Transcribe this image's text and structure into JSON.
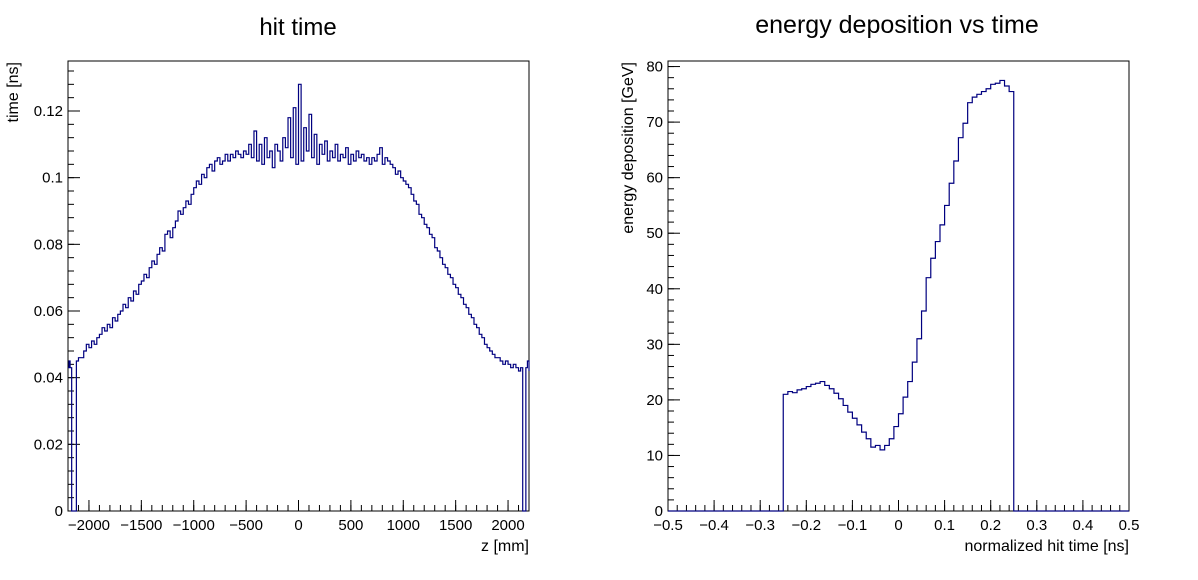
{
  "chart_data": [
    {
      "id": "left",
      "type": "histogram",
      "title": "hit time",
      "xlabel": "z [mm]",
      "ylabel": "time [ns]",
      "xlim": [
        -2200,
        2200
      ],
      "ylim": [
        0,
        0.135
      ],
      "xticks": [
        -2000,
        -1500,
        -1000,
        -500,
        0,
        500,
        1000,
        1500,
        2000
      ],
      "xtick_labels": [
        "−2000",
        "−1500",
        "−1000",
        "−500",
        "0",
        "500",
        "1000",
        "1500",
        "2000"
      ],
      "yticks": [
        0,
        0.02,
        0.04,
        0.06,
        0.08,
        0.1,
        0.12
      ],
      "ytick_labels": [
        "0",
        "0.02",
        "0.04",
        "0.06",
        "0.08",
        "0.1",
        "0.12"
      ],
      "grid": false,
      "series": [
        {
          "color": "#000080",
          "bins": [
            [
              -2200,
              0.043
            ],
            [
              -2190,
              0.045
            ],
            [
              -2180,
              0.043
            ],
            [
              -2165,
              0.0
            ],
            [
              -2150,
              0.0
            ],
            [
              -2140,
              0.0
            ],
            [
              -2120,
              0.045
            ],
            [
              -2100,
              0.046
            ],
            [
              -2075,
              0.046
            ],
            [
              -2050,
              0.048
            ],
            [
              -2025,
              0.05
            ],
            [
              -2000,
              0.049
            ],
            [
              -1975,
              0.051
            ],
            [
              -1950,
              0.05
            ],
            [
              -1925,
              0.052
            ],
            [
              -1900,
              0.053
            ],
            [
              -1875,
              0.055
            ],
            [
              -1850,
              0.054
            ],
            [
              -1825,
              0.056
            ],
            [
              -1800,
              0.055
            ],
            [
              -1775,
              0.058
            ],
            [
              -1750,
              0.057
            ],
            [
              -1725,
              0.059
            ],
            [
              -1700,
              0.06
            ],
            [
              -1675,
              0.062
            ],
            [
              -1650,
              0.061
            ],
            [
              -1625,
              0.064
            ],
            [
              -1600,
              0.063
            ],
            [
              -1575,
              0.066
            ],
            [
              -1550,
              0.065
            ],
            [
              -1525,
              0.068
            ],
            [
              -1500,
              0.069
            ],
            [
              -1475,
              0.071
            ],
            [
              -1450,
              0.07
            ],
            [
              -1425,
              0.073
            ],
            [
              -1400,
              0.075
            ],
            [
              -1375,
              0.074
            ],
            [
              -1350,
              0.077
            ],
            [
              -1325,
              0.079
            ],
            [
              -1300,
              0.078
            ],
            [
              -1275,
              0.083
            ],
            [
              -1250,
              0.084
            ],
            [
              -1225,
              0.082
            ],
            [
              -1200,
              0.085
            ],
            [
              -1175,
              0.087
            ],
            [
              -1150,
              0.09
            ],
            [
              -1125,
              0.089
            ],
            [
              -1100,
              0.091
            ],
            [
              -1075,
              0.093
            ],
            [
              -1050,
              0.092
            ],
            [
              -1025,
              0.095
            ],
            [
              -1000,
              0.097
            ],
            [
              -975,
              0.099
            ],
            [
              -950,
              0.098
            ],
            [
              -925,
              0.101
            ],
            [
              -900,
              0.1
            ],
            [
              -875,
              0.103
            ],
            [
              -850,
              0.104
            ],
            [
              -825,
              0.102
            ],
            [
              -800,
              0.105
            ],
            [
              -775,
              0.106
            ],
            [
              -750,
              0.104
            ],
            [
              -725,
              0.105
            ],
            [
              -700,
              0.107
            ],
            [
              -675,
              0.105
            ],
            [
              -650,
              0.107
            ],
            [
              -625,
              0.106
            ],
            [
              -600,
              0.108
            ],
            [
              -575,
              0.107
            ],
            [
              -550,
              0.106
            ],
            [
              -525,
              0.108
            ],
            [
              -500,
              0.107
            ],
            [
              -475,
              0.11
            ],
            [
              -450,
              0.106
            ],
            [
              -425,
              0.114
            ],
            [
              -400,
              0.105
            ],
            [
              -375,
              0.11
            ],
            [
              -350,
              0.104
            ],
            [
              -325,
              0.112
            ],
            [
              -300,
              0.106
            ],
            [
              -275,
              0.108
            ],
            [
              -250,
              0.103
            ],
            [
              -225,
              0.11
            ],
            [
              -200,
              0.108
            ],
            [
              -175,
              0.105
            ],
            [
              -150,
              0.112
            ],
            [
              -125,
              0.109
            ],
            [
              -100,
              0.118
            ],
            [
              -75,
              0.106
            ],
            [
              -50,
              0.121
            ],
            [
              -25,
              0.104
            ],
            [
              0,
              0.128
            ],
            [
              25,
              0.105
            ],
            [
              50,
              0.115
            ],
            [
              75,
              0.108
            ],
            [
              100,
              0.119
            ],
            [
              125,
              0.106
            ],
            [
              150,
              0.113
            ],
            [
              175,
              0.104
            ],
            [
              200,
              0.11
            ],
            [
              225,
              0.107
            ],
            [
              250,
              0.111
            ],
            [
              275,
              0.105
            ],
            [
              300,
              0.108
            ],
            [
              325,
              0.106
            ],
            [
              350,
              0.11
            ],
            [
              375,
              0.105
            ],
            [
              400,
              0.107
            ],
            [
              425,
              0.106
            ],
            [
              450,
              0.109
            ],
            [
              475,
              0.104
            ],
            [
              500,
              0.107
            ],
            [
              525,
              0.105
            ],
            [
              550,
              0.108
            ],
            [
              575,
              0.106
            ],
            [
              600,
              0.107
            ],
            [
              625,
              0.105
            ],
            [
              650,
              0.106
            ],
            [
              675,
              0.104
            ],
            [
              700,
              0.106
            ],
            [
              725,
              0.105
            ],
            [
              750,
              0.107
            ],
            [
              775,
              0.109
            ],
            [
              800,
              0.104
            ],
            [
              825,
              0.106
            ],
            [
              850,
              0.105
            ],
            [
              875,
              0.104
            ],
            [
              900,
              0.103
            ],
            [
              925,
              0.101
            ],
            [
              950,
              0.102
            ],
            [
              975,
              0.1
            ],
            [
              1000,
              0.099
            ],
            [
              1025,
              0.098
            ],
            [
              1050,
              0.097
            ],
            [
              1075,
              0.095
            ],
            [
              1100,
              0.093
            ],
            [
              1125,
              0.092
            ],
            [
              1150,
              0.089
            ],
            [
              1175,
              0.088
            ],
            [
              1200,
              0.086
            ],
            [
              1225,
              0.085
            ],
            [
              1250,
              0.083
            ],
            [
              1275,
              0.082
            ],
            [
              1300,
              0.079
            ],
            [
              1325,
              0.078
            ],
            [
              1350,
              0.076
            ],
            [
              1375,
              0.074
            ],
            [
              1400,
              0.073
            ],
            [
              1425,
              0.071
            ],
            [
              1450,
              0.07
            ],
            [
              1475,
              0.068
            ],
            [
              1500,
              0.067
            ],
            [
              1525,
              0.065
            ],
            [
              1550,
              0.064
            ],
            [
              1575,
              0.062
            ],
            [
              1600,
              0.061
            ],
            [
              1625,
              0.059
            ],
            [
              1650,
              0.058
            ],
            [
              1675,
              0.056
            ],
            [
              1700,
              0.055
            ],
            [
              1725,
              0.053
            ],
            [
              1750,
              0.052
            ],
            [
              1775,
              0.05
            ],
            [
              1800,
              0.049
            ],
            [
              1825,
              0.048
            ],
            [
              1850,
              0.047
            ],
            [
              1875,
              0.046
            ],
            [
              1900,
              0.046
            ],
            [
              1925,
              0.045
            ],
            [
              1950,
              0.044
            ],
            [
              1975,
              0.045
            ],
            [
              2000,
              0.044
            ],
            [
              2025,
              0.043
            ],
            [
              2050,
              0.044
            ],
            [
              2075,
              0.043
            ],
            [
              2100,
              0.042
            ],
            [
              2120,
              0.043
            ],
            [
              2140,
              0.0
            ],
            [
              2160,
              0.0
            ],
            [
              2170,
              0.043
            ],
            [
              2185,
              0.045
            ],
            [
              2200,
              0.042
            ]
          ]
        }
      ]
    },
    {
      "id": "right",
      "type": "histogram",
      "title": "energy deposition vs time",
      "xlabel": "normalized hit time [ns]",
      "ylabel": "energy deposition [GeV]",
      "xlim": [
        -0.5,
        0.5
      ],
      "ylim": [
        0,
        81
      ],
      "xticks": [
        -0.5,
        -0.4,
        -0.3,
        -0.2,
        -0.1,
        0,
        0.1,
        0.2,
        0.3,
        0.4,
        0.5
      ],
      "xtick_labels": [
        "−0.5",
        "−0.4",
        "−0.3",
        "−0.2",
        "−0.1",
        "0",
        "0.1",
        "0.2",
        "0.3",
        "0.4",
        "0.5"
      ],
      "yticks": [
        0,
        10,
        20,
        30,
        40,
        50,
        60,
        70,
        80
      ],
      "ytick_labels": [
        "0",
        "10",
        "20",
        "30",
        "40",
        "50",
        "60",
        "70",
        "80"
      ],
      "grid": false,
      "series": [
        {
          "color": "#000080",
          "bin_width": 0.01,
          "x": [
            -0.25,
            -0.24,
            -0.23,
            -0.22,
            -0.21,
            -0.2,
            -0.19,
            -0.18,
            -0.17,
            -0.16,
            -0.15,
            -0.14,
            -0.13,
            -0.12,
            -0.11,
            -0.1,
            -0.09,
            -0.08,
            -0.07,
            -0.06,
            -0.05,
            -0.04,
            -0.03,
            -0.02,
            -0.01,
            0.0,
            0.01,
            0.02,
            0.03,
            0.04,
            0.05,
            0.06,
            0.07,
            0.08,
            0.09,
            0.1,
            0.11,
            0.12,
            0.13,
            0.14,
            0.15,
            0.16,
            0.17,
            0.18,
            0.19,
            0.2,
            0.21,
            0.22,
            0.23,
            0.24
          ],
          "values": [
            21.0,
            21.5,
            21.3,
            21.8,
            22.0,
            22.4,
            22.8,
            23.0,
            23.3,
            22.6,
            22.0,
            21.2,
            20.2,
            19.0,
            17.8,
            16.7,
            15.5,
            14.2,
            13.0,
            11.5,
            11.8,
            11.0,
            11.8,
            13.0,
            15.2,
            17.5,
            20.5,
            23.3,
            26.8,
            31.0,
            36.0,
            42.0,
            45.5,
            48.5,
            51.5,
            55.0,
            59.0,
            63.0,
            67.2,
            69.8,
            73.5,
            74.5,
            75.0,
            75.5,
            76.0,
            76.8,
            77.0,
            77.5,
            76.5,
            75.5
          ]
        }
      ]
    }
  ]
}
